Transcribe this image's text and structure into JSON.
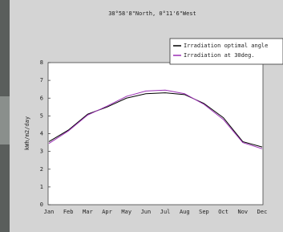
{
  "chart_data": {
    "type": "line",
    "title": "38°58'8\"North, 0°11'6\"West",
    "y_label": "kWh/m2/day",
    "categories": [
      "Jan",
      "Feb",
      "Mar",
      "Apr",
      "May",
      "Jun",
      "Jul",
      "Aug",
      "Sep",
      "Oct",
      "Nov",
      "Dec"
    ],
    "series": [
      {
        "name": "Irradiation optimal angle",
        "color": "#000000",
        "values": [
          3.55,
          4.2,
          5.1,
          5.5,
          6.0,
          6.25,
          6.3,
          6.2,
          5.7,
          4.9,
          3.55,
          3.25
        ]
      },
      {
        "name": "Irradiation at 30deg.",
        "color": "#9b2fb5",
        "values": [
          3.45,
          4.15,
          5.05,
          5.55,
          6.1,
          6.4,
          6.45,
          6.25,
          5.65,
          4.8,
          3.5,
          3.15
        ]
      }
    ],
    "ylim": [
      0,
      8
    ],
    "yticks": [
      0,
      1,
      2,
      3,
      4,
      5,
      6,
      7,
      8
    ],
    "grid": false,
    "legend": "top-right"
  }
}
